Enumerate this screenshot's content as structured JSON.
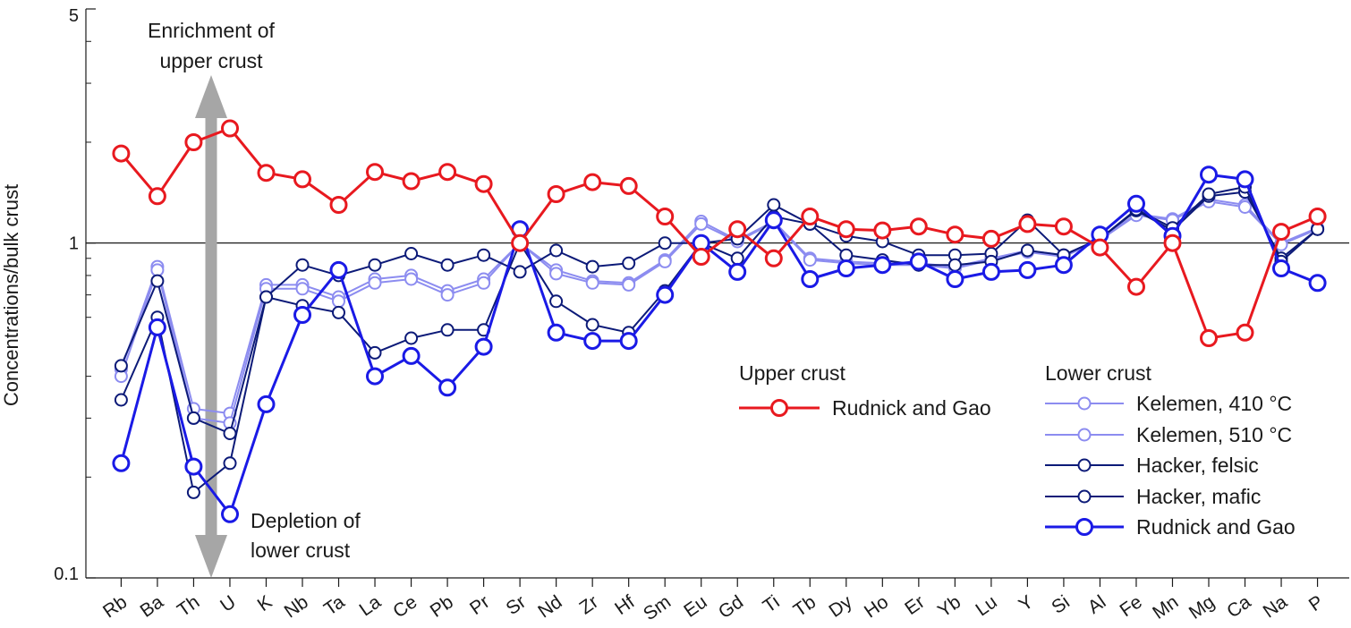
{
  "chart_data": {
    "type": "line",
    "yscale": "log",
    "ylim": [
      0.1,
      5
    ],
    "ylabel": "Concentrations/bulk crust",
    "yticks": [
      {
        "value": 0.1,
        "label": "0.1"
      },
      {
        "value": 1,
        "label": "1"
      },
      {
        "value": 5,
        "label": "5"
      }
    ],
    "reference_line": 1,
    "categories": [
      "Rb",
      "Ba",
      "Th",
      "U",
      "K",
      "Nb",
      "Ta",
      "La",
      "Ce",
      "Pb",
      "Pr",
      "Sr",
      "Nd",
      "Zr",
      "Hf",
      "Sm",
      "Eu",
      "Gd",
      "Ti",
      "Tb",
      "Dy",
      "Ho",
      "Er",
      "Yb",
      "Lu",
      "Y",
      "Si",
      "Al",
      "Fe",
      "Mn",
      "Mg",
      "Ca",
      "Na",
      "P"
    ],
    "series": [
      {
        "name": "Rudnick and Gao",
        "group": "Upper crust",
        "color": "#e8191f",
        "style": "bold",
        "values": [
          1.85,
          1.38,
          2.0,
          2.2,
          1.62,
          1.55,
          1.3,
          1.63,
          1.53,
          1.63,
          1.5,
          1.0,
          1.4,
          1.52,
          1.48,
          1.2,
          0.91,
          1.1,
          0.9,
          1.2,
          1.1,
          1.09,
          1.12,
          1.06,
          1.03,
          1.14,
          1.12,
          0.97,
          0.74,
          1.0,
          0.52,
          0.54,
          1.08,
          1.2
        ]
      },
      {
        "name": "Kelemen, 410 °C",
        "group": "Lower crust",
        "color": "#8c8cf0",
        "style": "thin",
        "values": [
          0.42,
          0.85,
          0.32,
          0.31,
          0.75,
          0.75,
          0.69,
          0.78,
          0.8,
          0.72,
          0.78,
          1.0,
          0.83,
          0.77,
          0.76,
          0.89,
          1.16,
          1.02,
          1.16,
          0.9,
          0.88,
          0.87,
          0.87,
          0.85,
          0.9,
          0.95,
          0.92,
          1.03,
          1.22,
          1.18,
          1.35,
          1.3,
          1.0,
          1.11
        ]
      },
      {
        "name": "Kelemen, 510 °C",
        "group": "Lower crust",
        "color": "#8c8cf0",
        "style": "thin",
        "values": [
          0.4,
          0.83,
          0.3,
          0.29,
          0.73,
          0.73,
          0.67,
          0.76,
          0.78,
          0.7,
          0.76,
          1.0,
          0.81,
          0.76,
          0.75,
          0.88,
          1.14,
          1.01,
          1.15,
          0.89,
          0.87,
          0.86,
          0.86,
          0.84,
          0.89,
          0.94,
          0.91,
          1.02,
          1.21,
          1.17,
          1.33,
          1.28,
          0.99,
          1.1
        ]
      },
      {
        "name": "Hacker, felsic",
        "group": "Lower crust",
        "color": "#0c1a78",
        "style": "thin",
        "values": [
          0.43,
          0.77,
          0.3,
          0.27,
          0.69,
          0.86,
          0.8,
          0.86,
          0.93,
          0.86,
          0.92,
          0.82,
          0.95,
          0.85,
          0.87,
          1.0,
          1.0,
          1.03,
          1.3,
          1.14,
          1.05,
          1.01,
          0.92,
          0.92,
          0.93,
          1.17,
          0.92,
          1.03,
          1.25,
          1.09,
          1.38,
          1.42,
          0.9,
          1.1
        ]
      },
      {
        "name": "Hacker, mafic",
        "group": "Lower crust",
        "color": "#0c1a78",
        "style": "thin",
        "values": [
          0.34,
          0.6,
          0.18,
          0.22,
          0.69,
          0.65,
          0.62,
          0.47,
          0.52,
          0.55,
          0.55,
          1.0,
          0.67,
          0.57,
          0.54,
          0.72,
          1.0,
          0.9,
          1.2,
          1.14,
          0.92,
          0.89,
          0.86,
          0.86,
          0.88,
          0.95,
          0.92,
          1.03,
          1.26,
          1.11,
          1.4,
          1.47,
          0.88,
          1.1
        ]
      },
      {
        "name": "Rudnick and Gao",
        "group": "Lower crust",
        "color": "#1a1ae6",
        "style": "bold",
        "values": [
          0.22,
          0.56,
          0.215,
          0.155,
          0.33,
          0.61,
          0.83,
          0.4,
          0.46,
          0.37,
          0.49,
          1.1,
          0.54,
          0.51,
          0.51,
          0.7,
          1.0,
          0.82,
          1.17,
          0.78,
          0.84,
          0.86,
          0.88,
          0.78,
          0.82,
          0.83,
          0.86,
          1.06,
          1.31,
          1.05,
          1.6,
          1.55,
          0.84,
          0.76
        ]
      }
    ],
    "annotations": {
      "enrichment": [
        "Enrichment of",
        "upper crust"
      ],
      "depletion": [
        "Depletion of",
        "lower crust"
      ]
    },
    "legend": {
      "upper_title": "Upper crust",
      "lower_title": "Lower crust",
      "placement": "bottom-right"
    }
  }
}
